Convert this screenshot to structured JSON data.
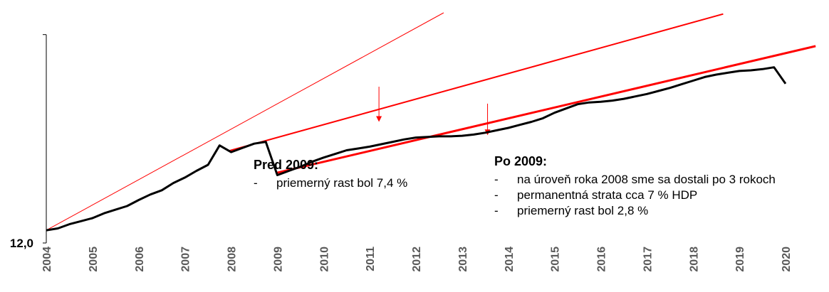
{
  "chart_data": {
    "type": "line",
    "title": "",
    "xlabel": "",
    "ylabel": "",
    "x_tick_labels": [
      "2004",
      "2005",
      "2006",
      "2007",
      "2008",
      "2009",
      "2010",
      "2011",
      "2012",
      "2013",
      "2014",
      "2015",
      "2016",
      "2017",
      "2018",
      "2019",
      "2020"
    ],
    "y_tick_labels": [
      "12,0"
    ],
    "xlim": [
      2004.0,
      2020.0
    ],
    "series": [
      {
        "name": "",
        "color": "#000000",
        "x": [
          2004.0,
          2004.25,
          2004.5,
          2004.75,
          2005.0,
          2005.25,
          2005.5,
          2005.75,
          2006.0,
          2006.25,
          2006.5,
          2006.75,
          2007.0,
          2007.25,
          2007.5,
          2007.75,
          2008.0,
          2008.25,
          2008.5,
          2008.75,
          2009.0,
          2009.25,
          2009.5,
          2009.75,
          2010.0,
          2010.25,
          2010.5,
          2010.75,
          2011.0,
          2011.25,
          2011.5,
          2011.75,
          2012.0,
          2012.25,
          2012.5,
          2012.75,
          2013.0,
          2013.25,
          2013.5,
          2013.75,
          2014.0,
          2014.25,
          2014.5,
          2014.75,
          2015.0,
          2015.25,
          2015.5,
          2015.75,
          2016.0,
          2016.25,
          2016.5,
          2016.75,
          2017.0,
          2017.25,
          2017.5,
          2017.75,
          2018.0,
          2018.25,
          2018.5,
          2018.75,
          2019.0,
          2019.25,
          2019.5,
          2019.75,
          2020.0
        ],
        "y": [
          12.05,
          12.2,
          12.55,
          12.8,
          13.05,
          13.45,
          13.75,
          14.05,
          14.55,
          15.0,
          15.35,
          15.95,
          16.4,
          16.95,
          17.45,
          19.05,
          18.5,
          18.85,
          19.2,
          19.35,
          16.6,
          16.95,
          17.3,
          17.7,
          18.05,
          18.35,
          18.65,
          18.8,
          18.95,
          19.15,
          19.35,
          19.55,
          19.7,
          19.75,
          19.8,
          19.8,
          19.85,
          19.95,
          20.1,
          20.3,
          20.5,
          20.75,
          21.0,
          21.3,
          21.75,
          22.1,
          22.45,
          22.6,
          22.65,
          22.75,
          22.9,
          23.1,
          23.3,
          23.55,
          23.8,
          24.1,
          24.4,
          24.7,
          24.9,
          25.05,
          25.2,
          25.25,
          25.35,
          25.5,
          24.15
        ]
      }
    ],
    "trend_lines": [
      {
        "color": "#ff0000",
        "width": "thin",
        "x": [
          2004.0,
          2012.6
        ],
        "y": [
          12.05,
          30.0
        ]
      },
      {
        "color": "#ff0000",
        "width": "medium",
        "x": [
          2007.95,
          2018.65
        ],
        "y": [
          18.6,
          29.9
        ]
      },
      {
        "color": "#ff0000",
        "width": "thick",
        "x": [
          2009.0,
          2020.65
        ],
        "y": [
          16.8,
          27.25
        ]
      }
    ],
    "arrows": [
      {
        "color": "#ff0000",
        "x": 2011.2,
        "y_from": 23.9,
        "y_to": 21.0
      },
      {
        "color": "#ff0000",
        "x": 2013.55,
        "y_from": 22.5,
        "y_to": 19.9
      }
    ],
    "ylim": [
      11.0,
      30.0
    ]
  },
  "annotations": {
    "pre": {
      "title": "Pred 2009:",
      "items": [
        "priemerný rast bol 7,4 %"
      ]
    },
    "post": {
      "title": "Po 2009:",
      "items": [
        "na úroveň roka 2008 sme sa dostali po 3 rokoch",
        "permanentná strata cca 7 % HDP",
        "priemerný rast bol 2,8 %"
      ]
    }
  },
  "bullet": "-"
}
